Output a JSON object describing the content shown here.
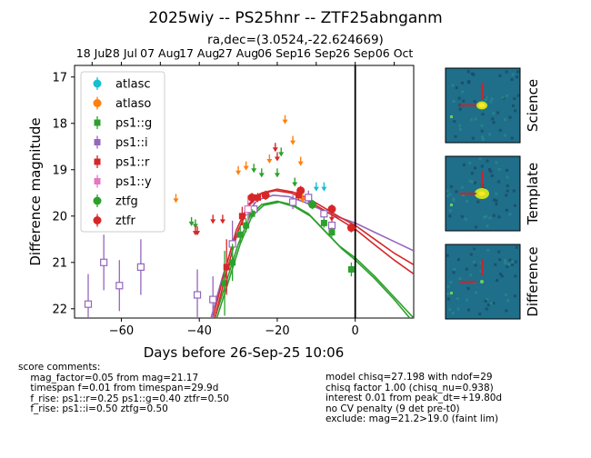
{
  "header": {
    "title": "2025wiy -- PS25hnr -- ZTF25abnganm",
    "coords": "ra,dec=(3.0524,-22.624669)"
  },
  "chart_data": {
    "type": "scatter",
    "xlabel": "Days before 26-Sep-25 10:06",
    "ylabel": "Difference magnitude",
    "xlim": [
      -72,
      15
    ],
    "ylim": [
      22.2,
      16.75
    ],
    "inverted_y": true,
    "x_ticks": [
      -60,
      -40,
      -20,
      0
    ],
    "y_ticks": [
      17,
      18,
      19,
      20,
      21,
      22
    ],
    "top_axis_labels": [
      {
        "x": -67.5,
        "label": "18 Jul"
      },
      {
        "x": -60,
        "label": "28 Jul"
      },
      {
        "x": -50,
        "label": "07 Aug"
      },
      {
        "x": -40,
        "label": "17 Aug"
      },
      {
        "x": -30,
        "label": "27 Aug"
      },
      {
        "x": -20,
        "label": "06 Sep"
      },
      {
        "x": -10,
        "label": "16 Sep"
      },
      {
        "x": 0,
        "label": "26 Sep"
      },
      {
        "x": 10,
        "label": "06 Oct"
      }
    ],
    "vline_x": 0,
    "legend": {
      "placement": "upper-left",
      "entries": [
        {
          "label": "atlasc",
          "color": "#17becf",
          "marker": "circle"
        },
        {
          "label": "atlaso",
          "color": "#ff7f0e",
          "marker": "circle"
        },
        {
          "label": "ps1::g",
          "color": "#2ca02c",
          "marker": "square"
        },
        {
          "label": "ps1::i",
          "color": "#9467bd",
          "marker": "square"
        },
        {
          "label": "ps1::r",
          "color": "#d62728",
          "marker": "square"
        },
        {
          "label": "ps1::y",
          "color": "#e377c2",
          "marker": "square"
        },
        {
          "label": "ztfg",
          "color": "#2ca02c",
          "marker": "circle"
        },
        {
          "label": "ztfr",
          "color": "#d62728",
          "marker": "circle"
        }
      ]
    },
    "series": [
      {
        "name": "ps1::i",
        "color": "#9467bd",
        "marker": "square-open",
        "points": [
          [
            -68.5,
            21.9,
            0.65
          ],
          [
            -64.5,
            21.0,
            0.6
          ],
          [
            -60.5,
            21.5,
            0.55
          ],
          [
            -55,
            21.1,
            0.6
          ],
          [
            -40.5,
            21.7,
            0.55
          ],
          [
            -36.5,
            21.8,
            0.5
          ],
          [
            -31.5,
            20.6,
            0.5
          ],
          [
            -27.5,
            19.9,
            0.2
          ],
          [
            -26,
            19.85,
            0.15
          ],
          [
            -16,
            19.7,
            0.15
          ],
          [
            -12,
            19.6,
            0.15
          ],
          [
            -8,
            19.95,
            0.1
          ],
          [
            -6,
            20.2,
            0.1
          ]
        ]
      },
      {
        "name": "ps1::g",
        "color": "#2ca02c",
        "marker": "square",
        "points": [
          [
            -33.5,
            21.45,
            0.7
          ],
          [
            -31.5,
            21.0,
            0.4
          ],
          [
            -29.5,
            20.4,
            0.2
          ],
          [
            -28,
            20.2,
            0.15
          ],
          [
            -26.5,
            19.95,
            0.1
          ],
          [
            -8,
            20.15,
            0.1
          ],
          [
            -6,
            20.35,
            0.1
          ],
          [
            -1,
            21.15,
            0.15
          ]
        ]
      },
      {
        "name": "ps1::r",
        "color": "#d62728",
        "marker": "square",
        "points": [
          [
            -33,
            21.1,
            0.6
          ],
          [
            -29,
            20.0,
            0.2
          ],
          [
            -25,
            19.6,
            0.1
          ],
          [
            -14.5,
            19.55,
            0.1
          ],
          [
            -1,
            20.25,
            0.1
          ]
        ]
      },
      {
        "name": "ps1::y",
        "color": "#e377c2",
        "marker": "square-open",
        "points": [
          [
            -27.5,
            19.85,
            0.3
          ]
        ]
      },
      {
        "name": "ztfg",
        "color": "#2ca02c",
        "marker": "circle",
        "points": [
          [
            -11,
            19.75,
            0.1
          ]
        ]
      },
      {
        "name": "ztfr",
        "color": "#d62728",
        "marker": "circle",
        "points": [
          [
            -26.5,
            19.6,
            0.1
          ],
          [
            -23,
            19.55,
            0.1
          ],
          [
            -14,
            19.45,
            0.1
          ],
          [
            -6,
            19.85,
            0.1
          ],
          [
            -1,
            20.25,
            0.1
          ]
        ]
      },
      {
        "name": "atlasc",
        "color": "#17becf",
        "marker": "arrow-down",
        "points": [
          [
            -10,
            19.35
          ],
          [
            -8,
            19.35
          ]
        ]
      },
      {
        "name": "atlaso",
        "color": "#ff7f0e",
        "marker": "arrow-down",
        "points": [
          [
            -46,
            19.6
          ],
          [
            -30,
            19.0
          ],
          [
            -28,
            18.9
          ],
          [
            -22,
            18.75
          ],
          [
            -18,
            17.9
          ],
          [
            -16,
            18.35
          ],
          [
            -14,
            18.8
          ],
          [
            -13.5,
            19.6
          ]
        ]
      },
      {
        "name": "ztfg_limits",
        "color": "#2ca02c",
        "marker": "arrow-down",
        "points": [
          [
            -42,
            20.1
          ],
          [
            -41,
            20.15
          ],
          [
            -26,
            18.95
          ],
          [
            -24,
            19.05
          ],
          [
            -20,
            19.05
          ],
          [
            -19,
            18.6
          ],
          [
            -15.5,
            19.25
          ]
        ]
      },
      {
        "name": "ztfr_limits",
        "color": "#d62728",
        "marker": "arrow-down",
        "points": [
          [
            -41,
            20.3
          ],
          [
            -40.5,
            20.3
          ],
          [
            -36.5,
            20.05
          ],
          [
            -34,
            20.05
          ],
          [
            -20.5,
            18.5
          ],
          [
            -20,
            18.7
          ],
          [
            -6,
            20.0
          ]
        ]
      }
    ],
    "models": [
      {
        "color": "#2ca02c",
        "points": [
          [
            -36,
            22.2
          ],
          [
            -33,
            21.4
          ],
          [
            -30,
            20.6
          ],
          [
            -27,
            20.0
          ],
          [
            -24,
            19.75
          ],
          [
            -20,
            19.68
          ],
          [
            -16,
            19.76
          ],
          [
            -12,
            19.95
          ],
          [
            -8,
            20.3
          ],
          [
            -4,
            20.65
          ],
          [
            0,
            20.9
          ],
          [
            5,
            21.3
          ],
          [
            10,
            21.75
          ],
          [
            15,
            22.2
          ]
        ]
      },
      {
        "color": "#2ca02c",
        "points": [
          [
            -35.5,
            22.2
          ],
          [
            -32.5,
            21.4
          ],
          [
            -29.5,
            20.6
          ],
          [
            -26.5,
            20.0
          ],
          [
            -23.5,
            19.77
          ],
          [
            -19.5,
            19.7
          ],
          [
            -15.5,
            19.8
          ],
          [
            -11.5,
            20.0
          ],
          [
            -7.5,
            20.35
          ],
          [
            -3.5,
            20.7
          ],
          [
            0,
            20.95
          ],
          [
            5,
            21.35
          ],
          [
            10,
            21.8
          ],
          [
            14,
            22.2
          ]
        ]
      },
      {
        "color": "#9467bd",
        "points": [
          [
            -37,
            22.2
          ],
          [
            -34,
            21.3
          ],
          [
            -31,
            20.5
          ],
          [
            -28,
            19.95
          ],
          [
            -25,
            19.65
          ],
          [
            -21,
            19.55
          ],
          [
            -17,
            19.58
          ],
          [
            -13,
            19.7
          ],
          [
            -9,
            19.85
          ],
          [
            -5,
            20.0
          ],
          [
            0,
            20.15
          ],
          [
            5,
            20.35
          ],
          [
            10,
            20.55
          ],
          [
            15,
            20.75
          ]
        ]
      },
      {
        "color": "#d62728",
        "points": [
          [
            -36,
            22.2
          ],
          [
            -33,
            21.2
          ],
          [
            -30,
            20.3
          ],
          [
            -27,
            19.75
          ],
          [
            -24,
            19.5
          ],
          [
            -20,
            19.42
          ],
          [
            -16,
            19.48
          ],
          [
            -12,
            19.62
          ],
          [
            -8,
            19.82
          ],
          [
            -4,
            20.02
          ],
          [
            0,
            20.2
          ],
          [
            5,
            20.5
          ],
          [
            10,
            20.8
          ],
          [
            15,
            21.05
          ]
        ]
      },
      {
        "color": "#d62728",
        "points": [
          [
            -36.5,
            22.2
          ],
          [
            -33.5,
            21.2
          ],
          [
            -30.5,
            20.3
          ],
          [
            -27.5,
            19.76
          ],
          [
            -24.5,
            19.52
          ],
          [
            -20.5,
            19.45
          ],
          [
            -16.5,
            19.5
          ],
          [
            -12.5,
            19.65
          ],
          [
            -8.5,
            19.85
          ],
          [
            -4.5,
            20.05
          ],
          [
            0,
            20.28
          ],
          [
            5,
            20.62
          ],
          [
            10,
            20.95
          ],
          [
            15,
            21.25
          ]
        ]
      }
    ]
  },
  "stamps": {
    "labels": [
      "Science",
      "Template",
      "Difference"
    ]
  },
  "comments_left": "score comments:\n    mag_factor=0.05 from mag=21.17\n    timespan f=0.01 from timespan=29.9d\n    f_rise: ps1::r=0.25 ps1::g=0.40 ztfr=0.50\n    f_rise: ps1::i=0.50 ztfg=0.50",
  "comments_right": "model chisq=27.198 with ndof=29\nchisq factor 1.00 (chisq_nu=0.938)\ninterest 0.01 from peak_dt=+19.80d\nno CV penalty (9 det pre-t0)\nexclude: mag=21.2>19.0 (faint lim)",
  "colors": {
    "vline": "#000000",
    "stamp_bg": "#1f6e8a"
  }
}
